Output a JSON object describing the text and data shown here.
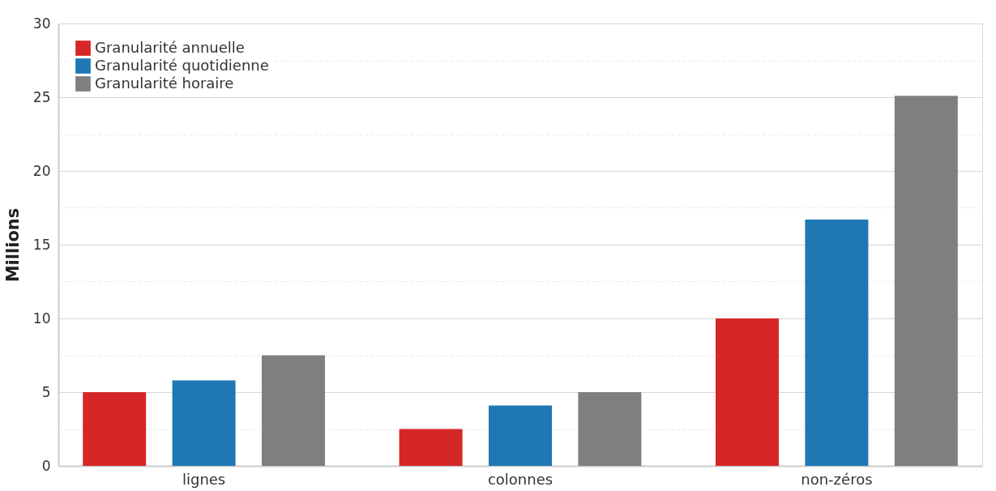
{
  "chart_data": {
    "type": "bar",
    "ylabel": "Millions",
    "categories": [
      "lignes",
      "colonnes",
      "non-zéros"
    ],
    "series": [
      {
        "name": "Granularité annuelle",
        "color": "#d62728",
        "values": [
          5.0,
          2.5,
          10.0
        ]
      },
      {
        "name": "Granularité quotidienne",
        "color": "#1f77b4",
        "values": [
          5.8,
          4.1,
          16.7
        ]
      },
      {
        "name": "Granularité horaire",
        "color": "#7f7f7f",
        "values": [
          7.5,
          5.0,
          25.1
        ]
      }
    ],
    "ylim": [
      0,
      30
    ],
    "yticks": [
      0,
      {
        "value": 2.5,
        "label": null
      },
      5,
      {
        "value": 7.5,
        "label": null
      },
      10,
      {
        "value": 12.5,
        "label": null
      },
      15,
      {
        "value": 17.5,
        "label": null
      },
      20,
      {
        "value": 22.5,
        "label": null
      },
      25,
      {
        "value": 27.5,
        "label": null
      },
      30
    ],
    "grid": "y",
    "legend": "top left"
  }
}
